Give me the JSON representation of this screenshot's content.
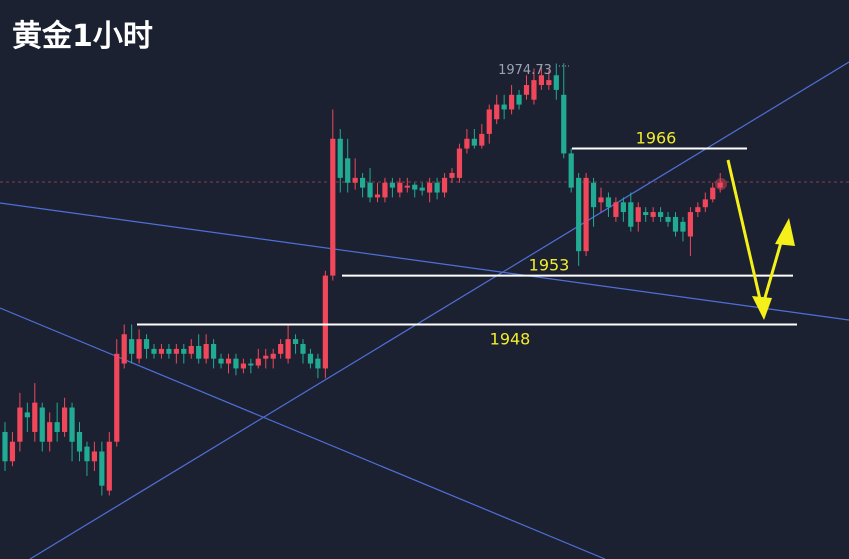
{
  "chart_data": {
    "type": "candlestick",
    "title": "黄金1小时",
    "ylim": [
      1924,
      1981.2
    ],
    "up_color": "#f0475b",
    "down_color": "#22ab94",
    "high_label": 1974.73,
    "levels": [
      1966,
      1953,
      1948
    ],
    "ohlc": [
      [
        1937,
        1938,
        1933,
        1934
      ],
      [
        1934,
        1937,
        1933.5,
        1936
      ],
      [
        1936,
        1941,
        1935,
        1939.5
      ],
      [
        1939,
        1940,
        1937,
        1938.5
      ],
      [
        1937,
        1942,
        1936,
        1940
      ],
      [
        1939.5,
        1940,
        1935,
        1936
      ],
      [
        1936,
        1939,
        1935,
        1938
      ],
      [
        1938,
        1940,
        1936,
        1937
      ],
      [
        1937,
        1940.5,
        1936.5,
        1939.5
      ],
      [
        1939.5,
        1940,
        1934,
        1936
      ],
      [
        1937,
        1938,
        1934,
        1935
      ],
      [
        1935.5,
        1936,
        1932.5,
        1934
      ],
      [
        1934,
        1936,
        1933,
        1935
      ],
      [
        1935,
        1936,
        1930.5,
        1931.5
      ],
      [
        1931,
        1937,
        1930.5,
        1936
      ],
      [
        1936,
        1946.5,
        1935.5,
        1945
      ],
      [
        1944,
        1948,
        1943.5,
        1947
      ],
      [
        1946.5,
        1948,
        1944,
        1945
      ],
      [
        1944.5,
        1947.5,
        1944,
        1946.5
      ],
      [
        1946.5,
        1947,
        1944.5,
        1945.5
      ],
      [
        1945.5,
        1946,
        1944.5,
        1945
      ],
      [
        1945,
        1946,
        1944.5,
        1945.5
      ],
      [
        1945.5,
        1946,
        1944.5,
        1945
      ],
      [
        1945,
        1946,
        1944,
        1945.5
      ],
      [
        1945.5,
        1946,
        1944,
        1945
      ],
      [
        1945,
        1946.5,
        1944.5,
        1945.8
      ],
      [
        1945.8,
        1947,
        1944,
        1944.5
      ],
      [
        1944.5,
        1947,
        1944,
        1946
      ],
      [
        1946,
        1946.5,
        1943.5,
        1944.5
      ],
      [
        1944.5,
        1945,
        1943.5,
        1944
      ],
      [
        1944,
        1945,
        1943,
        1944.5
      ],
      [
        1944.5,
        1945,
        1942.8,
        1943.5
      ],
      [
        1943.5,
        1944.5,
        1943,
        1944
      ],
      [
        1944,
        1944.5,
        1943,
        1943.8
      ],
      [
        1943.8,
        1945.5,
        1943.5,
        1944.5
      ],
      [
        1944.5,
        1945.5,
        1943.5,
        1944.8
      ],
      [
        1944.5,
        1945.5,
        1943.5,
        1945
      ],
      [
        1945,
        1946.5,
        1944.5,
        1946
      ],
      [
        1944.5,
        1948,
        1944,
        1946.5
      ],
      [
        1946.5,
        1947,
        1945,
        1946
      ],
      [
        1946,
        1946.5,
        1944,
        1945
      ],
      [
        1945,
        1945.5,
        1943.5,
        1944
      ],
      [
        1944.5,
        1945,
        1942.5,
        1943.5
      ],
      [
        1943.5,
        1953.5,
        1942.5,
        1953
      ],
      [
        1953,
        1970,
        1952.5,
        1967
      ],
      [
        1967,
        1968,
        1961.5,
        1963
      ],
      [
        1965,
        1967,
        1961.5,
        1962.5
      ],
      [
        1962.5,
        1965,
        1961.8,
        1963
      ],
      [
        1963,
        1963.5,
        1961,
        1962
      ],
      [
        1962.5,
        1964,
        1960.5,
        1961
      ],
      [
        1961,
        1962.5,
        1960.5,
        1961.3
      ],
      [
        1961,
        1963,
        1960.5,
        1962.5
      ],
      [
        1962.5,
        1963,
        1961,
        1962
      ],
      [
        1961.5,
        1963,
        1961,
        1962.5
      ],
      [
        1962,
        1963,
        1961.5,
        1962.2
      ],
      [
        1962.3,
        1962.5,
        1961,
        1961.8
      ],
      [
        1962,
        1962.5,
        1961.2,
        1961.7
      ],
      [
        1961.5,
        1963,
        1960.5,
        1962.5
      ],
      [
        1962.5,
        1963,
        1960.8,
        1961.5
      ],
      [
        1961.5,
        1963.5,
        1961,
        1963
      ],
      [
        1963,
        1964,
        1962.5,
        1963.5
      ],
      [
        1963,
        1966.5,
        1962.5,
        1966
      ],
      [
        1966,
        1968,
        1965.5,
        1967
      ],
      [
        1967,
        1968,
        1966,
        1966.3
      ],
      [
        1966.3,
        1968.5,
        1966,
        1967.5
      ],
      [
        1967.5,
        1970.5,
        1966.5,
        1970
      ],
      [
        1969,
        1971.5,
        1968.5,
        1970.5
      ],
      [
        1970.5,
        1971.5,
        1969,
        1970
      ],
      [
        1970,
        1972.5,
        1969.5,
        1971.5
      ],
      [
        1971.5,
        1972,
        1970,
        1970.5
      ],
      [
        1971.5,
        1973.5,
        1971,
        1972.5
      ],
      [
        1971,
        1974.2,
        1970.5,
        1973
      ],
      [
        1972.5,
        1974.5,
        1972,
        1973.5
      ],
      [
        1972.5,
        1974,
        1972,
        1973
      ],
      [
        1973.5,
        1974.7,
        1971,
        1972
      ],
      [
        1971.5,
        1974.73,
        1965,
        1965.5
      ],
      [
        1965.5,
        1966,
        1961.5,
        1962
      ],
      [
        1963,
        1963.5,
        1954,
        1955.5
      ],
      [
        1955.5,
        1963.5,
        1955,
        1963
      ],
      [
        1962.5,
        1963,
        1958,
        1960
      ],
      [
        1960.5,
        1962,
        1959.5,
        1961
      ],
      [
        1961,
        1961.5,
        1959,
        1960
      ],
      [
        1959,
        1961,
        1958.5,
        1960.5
      ],
      [
        1960.5,
        1961,
        1958.5,
        1959.5
      ],
      [
        1960.5,
        1961.5,
        1957.5,
        1958
      ],
      [
        1958.5,
        1960.5,
        1957.5,
        1960
      ],
      [
        1959.5,
        1960,
        1958.5,
        1959.2
      ],
      [
        1959,
        1960,
        1958.5,
        1959.5
      ],
      [
        1959.5,
        1960,
        1958.5,
        1959
      ],
      [
        1959,
        1959.5,
        1958,
        1958.5
      ],
      [
        1959,
        1959.5,
        1957,
        1957.5
      ],
      [
        1958.5,
        1959,
        1956.5,
        1957.5
      ],
      [
        1957,
        1960,
        1955,
        1959.5
      ],
      [
        1959.5,
        1960.5,
        1959,
        1960
      ],
      [
        1960,
        1961.5,
        1959.5,
        1960.8
      ],
      [
        1960.8,
        1962.5,
        1960.5,
        1962
      ],
      [
        1962,
        1963.5,
        1961.5,
        1962.5
      ]
    ]
  }
}
